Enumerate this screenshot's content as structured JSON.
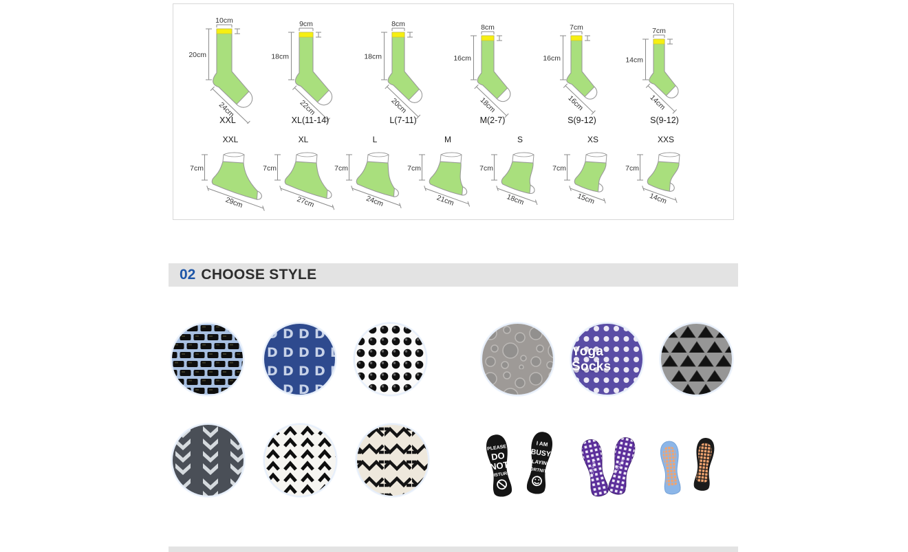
{
  "size_chart": {
    "tube_socks": [
      {
        "label": "XXL",
        "cuff_width": "10cm",
        "leg_height": "20cm",
        "foot_length": "24cm"
      },
      {
        "label": "XL(11-14)",
        "cuff_width": "9cm",
        "leg_height": "18cm",
        "foot_length": "22cm"
      },
      {
        "label": "L(7-11)",
        "cuff_width": "8cm",
        "leg_height": "18cm",
        "foot_length": "20cm"
      },
      {
        "label": "M(2-7)",
        "cuff_width": "8cm",
        "leg_height": "16cm",
        "foot_length": "18cm"
      },
      {
        "label": "S(9-12)",
        "cuff_width": "7cm",
        "leg_height": "16cm",
        "foot_length": "16cm"
      },
      {
        "label": "S(9-12)",
        "cuff_width": "7cm",
        "leg_height": "14cm",
        "foot_length": "14cm"
      }
    ],
    "ankle_socks": [
      {
        "label": "XXL",
        "sock_height": "7cm",
        "foot_length": "29cm"
      },
      {
        "label": "XL",
        "sock_height": "7cm",
        "foot_length": "27cm"
      },
      {
        "label": "L",
        "sock_height": "7cm",
        "foot_length": "24cm"
      },
      {
        "label": "M",
        "sock_height": "7cm",
        "foot_length": "21cm"
      },
      {
        "label": "S",
        "sock_height": "7cm",
        "foot_length": "18cm"
      },
      {
        "label": "XS",
        "sock_height": "7cm",
        "foot_length": "15cm"
      },
      {
        "label": "XXS",
        "sock_height": "7cm",
        "foot_length": "14cm"
      }
    ]
  },
  "section_header": {
    "number": "02",
    "title": "CHOOSE STYLE"
  },
  "style_swatches": [
    {
      "name": "black-brick-grip-swatch",
      "pattern": "bricks"
    },
    {
      "name": "blue-d-print-swatch",
      "pattern": "d-letters"
    },
    {
      "name": "black-dot-grip-swatch",
      "pattern": "dots"
    },
    {
      "name": "gray-bubble-grip-swatch",
      "pattern": "bubbles"
    },
    {
      "name": "yoga-socks-swatch",
      "pattern": "dots-text",
      "text": "Yoga Socks"
    },
    {
      "name": "black-triangle-grip-swatch",
      "pattern": "triangles"
    },
    {
      "name": "silver-chevron-knit-swatch",
      "pattern": "chevrons-light"
    },
    {
      "name": "black-chevron-print-swatch",
      "pattern": "chevrons-dark"
    },
    {
      "name": "tribal-zigzag-swatch",
      "pattern": "zigzag"
    }
  ],
  "product_photos": [
    {
      "name": "novelty-text-socks-photo",
      "left_sole_lines": [
        "PLEASE",
        "DO",
        "NOT",
        "DISTURB"
      ],
      "right_sole_lines": [
        "I AM",
        "BUSY",
        "PLAYING",
        "FORTNITE"
      ]
    },
    {
      "name": "purple-grip-socks-photo",
      "brand_text": "TION RUN"
    },
    {
      "name": "blue-black-grip-socks-photo"
    }
  ],
  "colors": {
    "accent_blue": "#1e56a8",
    "banner_bg": "#e3e3e3",
    "sock_green": "#a9df7d",
    "cuff_yellow": "#f6ef12",
    "measure_gray": "#8a8a8a"
  }
}
